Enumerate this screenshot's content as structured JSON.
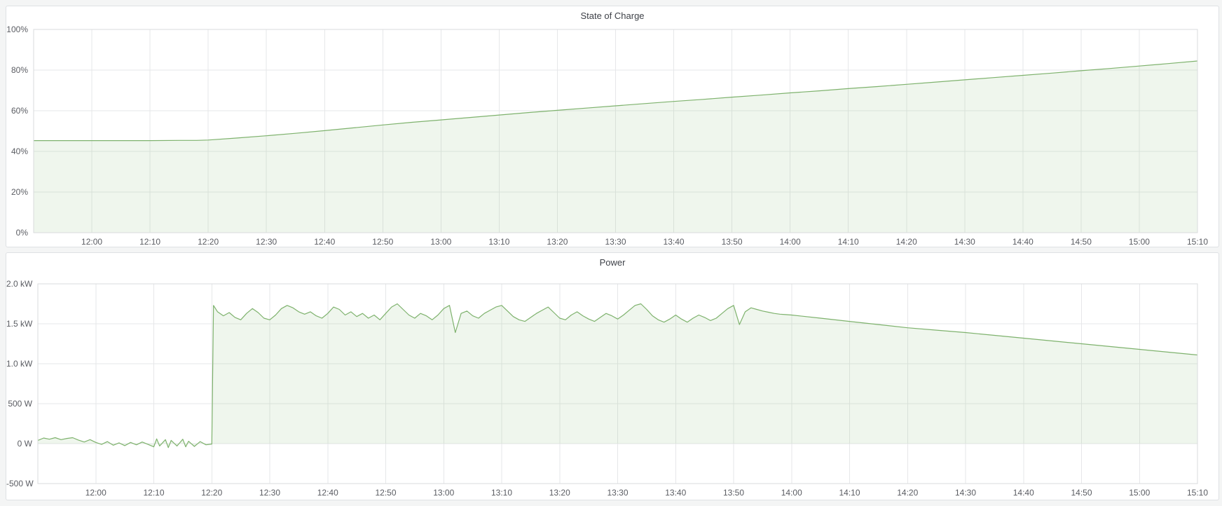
{
  "colors": {
    "series_green": "#7EB26D",
    "page_background": "#F4F5F5",
    "grid_line": "#E6E7E9",
    "plot_border": "#D9DBDD"
  },
  "chart_data": [
    {
      "type": "area",
      "title": "State of Charge",
      "xlabel": "",
      "ylabel": "",
      "ylim": [
        0,
        100
      ],
      "xlim_minutes": [
        0,
        200
      ],
      "grid": true,
      "legend_position": "none",
      "y_ticks": [
        {
          "v": 0,
          "label": "0%"
        },
        {
          "v": 20,
          "label": "20%"
        },
        {
          "v": 40,
          "label": "40%"
        },
        {
          "v": 60,
          "label": "60%"
        },
        {
          "v": 80,
          "label": "80%"
        },
        {
          "v": 100,
          "label": "100%"
        }
      ],
      "x_ticks": [
        {
          "t": 10,
          "label": "12:00"
        },
        {
          "t": 20,
          "label": "12:10"
        },
        {
          "t": 30,
          "label": "12:20"
        },
        {
          "t": 40,
          "label": "12:30"
        },
        {
          "t": 50,
          "label": "12:40"
        },
        {
          "t": 60,
          "label": "12:50"
        },
        {
          "t": 70,
          "label": "13:00"
        },
        {
          "t": 80,
          "label": "13:10"
        },
        {
          "t": 90,
          "label": "13:20"
        },
        {
          "t": 100,
          "label": "13:30"
        },
        {
          "t": 110,
          "label": "13:40"
        },
        {
          "t": 120,
          "label": "13:50"
        },
        {
          "t": 130,
          "label": "14:00"
        },
        {
          "t": 140,
          "label": "14:10"
        },
        {
          "t": 150,
          "label": "14:20"
        },
        {
          "t": 160,
          "label": "14:30"
        },
        {
          "t": 170,
          "label": "14:40"
        },
        {
          "t": 180,
          "label": "14:50"
        },
        {
          "t": 190,
          "label": "15:00"
        },
        {
          "t": 200,
          "label": "15:10"
        }
      ],
      "series": [
        {
          "name": "State of Charge",
          "unit": "%",
          "color": "#7EB26D",
          "fill_opacity": 0.12,
          "points": [
            [
              0,
              45.3
            ],
            [
              5,
              45.3
            ],
            [
              10,
              45.3
            ],
            [
              15,
              45.3
            ],
            [
              20,
              45.3
            ],
            [
              25,
              45.4
            ],
            [
              28,
              45.4
            ],
            [
              30,
              45.6
            ],
            [
              35,
              46.6
            ],
            [
              40,
              47.7
            ],
            [
              45,
              48.9
            ],
            [
              50,
              50.2
            ],
            [
              55,
              51.6
            ],
            [
              60,
              53.0
            ],
            [
              65,
              54.3
            ],
            [
              70,
              55.5
            ],
            [
              75,
              56.7
            ],
            [
              80,
              57.9
            ],
            [
              85,
              59.1
            ],
            [
              90,
              60.2
            ],
            [
              95,
              61.3
            ],
            [
              100,
              62.4
            ],
            [
              105,
              63.5
            ],
            [
              110,
              64.6
            ],
            [
              115,
              65.6
            ],
            [
              120,
              66.7
            ],
            [
              125,
              67.7
            ],
            [
              130,
              68.8
            ],
            [
              135,
              69.8
            ],
            [
              140,
              70.9
            ],
            [
              145,
              71.9
            ],
            [
              150,
              73.0
            ],
            [
              155,
              74.1
            ],
            [
              160,
              75.2
            ],
            [
              165,
              76.3
            ],
            [
              170,
              77.4
            ],
            [
              175,
              78.5
            ],
            [
              180,
              79.7
            ],
            [
              185,
              80.8
            ],
            [
              190,
              82.0
            ],
            [
              195,
              83.2
            ],
            [
              200,
              84.5
            ]
          ]
        }
      ]
    },
    {
      "type": "area",
      "title": "Power",
      "xlabel": "",
      "ylabel": "",
      "ylim": [
        -500,
        2000
      ],
      "xlim_minutes": [
        0,
        200
      ],
      "grid": true,
      "legend_position": "none",
      "y_ticks": [
        {
          "v": -500,
          "label": "-500 W"
        },
        {
          "v": 0,
          "label": "0 W"
        },
        {
          "v": 500,
          "label": "500 W"
        },
        {
          "v": 1000,
          "label": "1.0 kW"
        },
        {
          "v": 1500,
          "label": "1.5 kW"
        },
        {
          "v": 2000,
          "label": "2.0 kW"
        }
      ],
      "x_ticks": [
        {
          "t": 10,
          "label": "12:00"
        },
        {
          "t": 20,
          "label": "12:10"
        },
        {
          "t": 30,
          "label": "12:20"
        },
        {
          "t": 40,
          "label": "12:30"
        },
        {
          "t": 50,
          "label": "12:40"
        },
        {
          "t": 60,
          "label": "12:50"
        },
        {
          "t": 70,
          "label": "13:00"
        },
        {
          "t": 80,
          "label": "13:10"
        },
        {
          "t": 90,
          "label": "13:20"
        },
        {
          "t": 100,
          "label": "13:30"
        },
        {
          "t": 110,
          "label": "13:40"
        },
        {
          "t": 120,
          "label": "13:50"
        },
        {
          "t": 130,
          "label": "14:00"
        },
        {
          "t": 140,
          "label": "14:10"
        },
        {
          "t": 150,
          "label": "14:20"
        },
        {
          "t": 160,
          "label": "14:30"
        },
        {
          "t": 170,
          "label": "14:40"
        },
        {
          "t": 180,
          "label": "14:50"
        },
        {
          "t": 190,
          "label": "15:00"
        },
        {
          "t": 200,
          "label": "15:10"
        }
      ],
      "series": [
        {
          "name": "Power",
          "unit": "W",
          "color": "#7EB26D",
          "fill_opacity": 0.12,
          "fill_to": 0,
          "points": [
            [
              0,
              40
            ],
            [
              1,
              70
            ],
            [
              2,
              55
            ],
            [
              3,
              75
            ],
            [
              4,
              50
            ],
            [
              5,
              65
            ],
            [
              6,
              75
            ],
            [
              7,
              45
            ],
            [
              8,
              20
            ],
            [
              9,
              50
            ],
            [
              10,
              15
            ],
            [
              11,
              -10
            ],
            [
              12,
              25
            ],
            [
              13,
              -20
            ],
            [
              14,
              10
            ],
            [
              15,
              -25
            ],
            [
              16,
              15
            ],
            [
              17,
              -15
            ],
            [
              18,
              20
            ],
            [
              19,
              -10
            ],
            [
              20,
              -40
            ],
            [
              20.5,
              60
            ],
            [
              21,
              -30
            ],
            [
              22,
              50
            ],
            [
              22.5,
              -50
            ],
            [
              23,
              40
            ],
            [
              24,
              -30
            ],
            [
              25,
              55
            ],
            [
              25.5,
              -40
            ],
            [
              26,
              30
            ],
            [
              27,
              -35
            ],
            [
              28,
              25
            ],
            [
              29,
              -15
            ],
            [
              30,
              -5
            ],
            [
              30.3,
              1730
            ],
            [
              31,
              1650
            ],
            [
              32,
              1600
            ],
            [
              33,
              1640
            ],
            [
              34,
              1580
            ],
            [
              35,
              1550
            ],
            [
              36,
              1630
            ],
            [
              37,
              1690
            ],
            [
              38,
              1640
            ],
            [
              39,
              1570
            ],
            [
              40,
              1550
            ],
            [
              41,
              1610
            ],
            [
              42,
              1690
            ],
            [
              43,
              1730
            ],
            [
              44,
              1700
            ],
            [
              45,
              1650
            ],
            [
              46,
              1620
            ],
            [
              47,
              1650
            ],
            [
              48,
              1600
            ],
            [
              49,
              1570
            ],
            [
              50,
              1630
            ],
            [
              51,
              1710
            ],
            [
              52,
              1680
            ],
            [
              53,
              1610
            ],
            [
              54,
              1650
            ],
            [
              55,
              1590
            ],
            [
              56,
              1630
            ],
            [
              57,
              1570
            ],
            [
              58,
              1610
            ],
            [
              59,
              1550
            ],
            [
              60,
              1630
            ],
            [
              61,
              1710
            ],
            [
              62,
              1750
            ],
            [
              63,
              1680
            ],
            [
              64,
              1610
            ],
            [
              65,
              1570
            ],
            [
              66,
              1630
            ],
            [
              67,
              1600
            ],
            [
              68,
              1550
            ],
            [
              69,
              1610
            ],
            [
              70,
              1690
            ],
            [
              71,
              1730
            ],
            [
              72,
              1390
            ],
            [
              73,
              1630
            ],
            [
              74,
              1660
            ],
            [
              75,
              1600
            ],
            [
              76,
              1570
            ],
            [
              77,
              1630
            ],
            [
              78,
              1670
            ],
            [
              79,
              1710
            ],
            [
              80,
              1730
            ],
            [
              81,
              1660
            ],
            [
              82,
              1590
            ],
            [
              83,
              1550
            ],
            [
              84,
              1530
            ],
            [
              85,
              1580
            ],
            [
              86,
              1630
            ],
            [
              87,
              1670
            ],
            [
              88,
              1710
            ],
            [
              89,
              1640
            ],
            [
              90,
              1570
            ],
            [
              91,
              1550
            ],
            [
              92,
              1610
            ],
            [
              93,
              1650
            ],
            [
              94,
              1600
            ],
            [
              95,
              1560
            ],
            [
              96,
              1530
            ],
            [
              97,
              1580
            ],
            [
              98,
              1630
            ],
            [
              99,
              1600
            ],
            [
              100,
              1560
            ],
            [
              101,
              1610
            ],
            [
              102,
              1670
            ],
            [
              103,
              1730
            ],
            [
              104,
              1750
            ],
            [
              105,
              1680
            ],
            [
              106,
              1600
            ],
            [
              107,
              1550
            ],
            [
              108,
              1520
            ],
            [
              109,
              1560
            ],
            [
              110,
              1610
            ],
            [
              111,
              1560
            ],
            [
              112,
              1520
            ],
            [
              113,
              1570
            ],
            [
              114,
              1610
            ],
            [
              115,
              1580
            ],
            [
              116,
              1540
            ],
            [
              117,
              1570
            ],
            [
              118,
              1630
            ],
            [
              119,
              1690
            ],
            [
              120,
              1730
            ],
            [
              121,
              1490
            ],
            [
              122,
              1650
            ],
            [
              123,
              1700
            ],
            [
              124,
              1680
            ],
            [
              125,
              1660
            ],
            [
              126,
              1645
            ],
            [
              127,
              1630
            ],
            [
              128,
              1620
            ],
            [
              129,
              1615
            ],
            [
              130,
              1610
            ],
            [
              135,
              1570
            ],
            [
              140,
              1530
            ],
            [
              145,
              1490
            ],
            [
              150,
              1450
            ],
            [
              155,
              1420
            ],
            [
              160,
              1390
            ],
            [
              165,
              1355
            ],
            [
              170,
              1320
            ],
            [
              175,
              1285
            ],
            [
              180,
              1250
            ],
            [
              185,
              1215
            ],
            [
              190,
              1180
            ],
            [
              195,
              1145
            ],
            [
              200,
              1110
            ]
          ]
        }
      ]
    }
  ]
}
